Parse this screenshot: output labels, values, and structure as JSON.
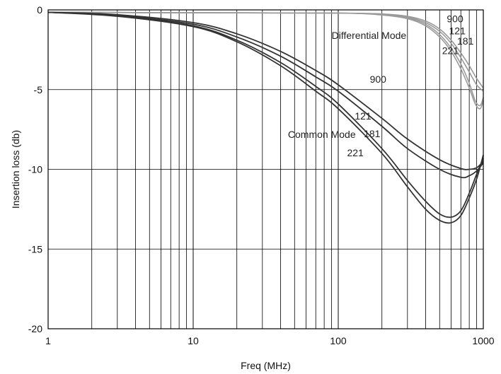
{
  "chart_data": {
    "type": "line",
    "title": "",
    "xlabel": "Freq (MHz)",
    "ylabel": "Insertion loss (db)",
    "x_scale": "log",
    "xlim": [
      1,
      1000
    ],
    "ylim": [
      -20,
      0
    ],
    "x_ticks": [
      "1",
      "10",
      "100",
      "1000"
    ],
    "y_ticks": [
      "0",
      "-5",
      "-10",
      "-15",
      "-20"
    ],
    "grid": true,
    "groups": [
      {
        "name": "Differential Mode"
      },
      {
        "name": "Common Mode"
      }
    ],
    "series": [
      {
        "name": "900",
        "group": "Differential Mode",
        "color": "#9a9a9a",
        "x": [
          1,
          10,
          100,
          200,
          300,
          400,
          500,
          600,
          700,
          800,
          900,
          1000
        ],
        "y": [
          -0.15,
          -0.18,
          -0.2,
          -0.25,
          -0.4,
          -0.7,
          -1.2,
          -1.9,
          -2.7,
          -3.5,
          -4.3,
          -4.9
        ]
      },
      {
        "name": "121",
        "group": "Differential Mode",
        "color": "#9a9a9a",
        "x": [
          1,
          10,
          100,
          200,
          300,
          400,
          500,
          600,
          700,
          800,
          900,
          1000
        ],
        "y": [
          -0.15,
          -0.18,
          -0.2,
          -0.28,
          -0.45,
          -0.8,
          -1.35,
          -2.1,
          -3.0,
          -3.9,
          -4.7,
          -5.1
        ]
      },
      {
        "name": "181",
        "group": "Differential Mode",
        "color": "#9a9a9a",
        "x": [
          1,
          10,
          100,
          200,
          300,
          400,
          500,
          600,
          700,
          800,
          880,
          950,
          1000
        ],
        "y": [
          -0.15,
          -0.18,
          -0.2,
          -0.3,
          -0.5,
          -0.9,
          -1.55,
          -2.4,
          -3.4,
          -4.6,
          -5.7,
          -6.0,
          -5.5
        ]
      },
      {
        "name": "221",
        "group": "Differential Mode",
        "color": "#9a9a9a",
        "x": [
          1,
          10,
          100,
          200,
          300,
          400,
          500,
          600,
          700,
          800,
          880,
          950,
          1000
        ],
        "y": [
          -0.15,
          -0.18,
          -0.2,
          -0.32,
          -0.55,
          -1.0,
          -1.7,
          -2.6,
          -3.7,
          -4.9,
          -5.9,
          -6.2,
          -5.7
        ]
      },
      {
        "name": "900",
        "group": "Common Mode",
        "color": "#333333",
        "x": [
          1,
          3,
          10,
          20,
          40,
          70,
          100,
          200,
          300,
          500,
          700,
          800,
          900,
          1000
        ],
        "y": [
          -0.15,
          -0.3,
          -0.8,
          -1.5,
          -2.6,
          -3.8,
          -4.7,
          -6.8,
          -8.1,
          -9.4,
          -9.95,
          -10.0,
          -9.9,
          -9.5
        ]
      },
      {
        "name": "121",
        "group": "Common Mode",
        "color": "#333333",
        "x": [
          1,
          3,
          10,
          20,
          40,
          70,
          100,
          200,
          300,
          500,
          700,
          800,
          900,
          1000
        ],
        "y": [
          -0.15,
          -0.35,
          -0.9,
          -1.7,
          -2.9,
          -4.2,
          -5.1,
          -7.3,
          -8.7,
          -10.0,
          -10.5,
          -10.4,
          -10.1,
          -9.6
        ]
      },
      {
        "name": "181",
        "group": "Common Mode",
        "color": "#333333",
        "x": [
          1,
          3,
          10,
          20,
          40,
          70,
          100,
          200,
          300,
          400,
          500,
          600,
          700,
          800,
          900,
          1000
        ],
        "y": [
          -0.15,
          -0.35,
          -1.0,
          -1.9,
          -3.3,
          -4.8,
          -5.9,
          -8.7,
          -10.7,
          -12.0,
          -12.8,
          -13.0,
          -12.6,
          -11.5,
          -10.3,
          -9.3
        ]
      },
      {
        "name": "221",
        "group": "Common Mode",
        "color": "#333333",
        "x": [
          1,
          3,
          10,
          20,
          40,
          70,
          100,
          200,
          300,
          400,
          500,
          600,
          700,
          800,
          900,
          1000
        ],
        "y": [
          -0.15,
          -0.4,
          -1.05,
          -2.0,
          -3.5,
          -5.1,
          -6.2,
          -9.0,
          -11.1,
          -12.5,
          -13.2,
          -13.35,
          -12.9,
          -11.8,
          -10.6,
          -9.1
        ]
      }
    ],
    "annotations": [
      {
        "text": "Differential Mode",
        "x": 90,
        "y": -1.6
      },
      {
        "text": "900",
        "x": 560,
        "y": -0.55
      },
      {
        "text": "121",
        "x": 580,
        "y": -1.3
      },
      {
        "text": "181",
        "x": 660,
        "y": -1.95
      },
      {
        "text": "221",
        "x": 520,
        "y": -2.55
      },
      {
        "text": "900",
        "x": 165,
        "y": -4.35
      },
      {
        "text": "121",
        "x": 130,
        "y": -6.65
      },
      {
        "text": "181",
        "x": 150,
        "y": -7.75
      },
      {
        "text": "221",
        "x": 115,
        "y": -8.95
      },
      {
        "text": "Common Mode",
        "x": 45,
        "y": -7.8
      }
    ]
  }
}
